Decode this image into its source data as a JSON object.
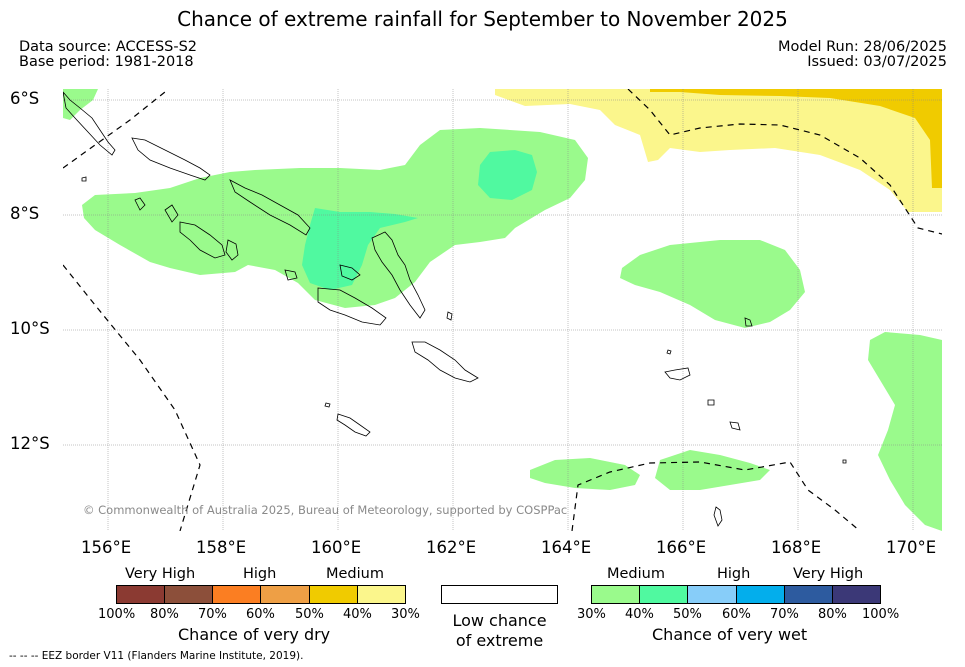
{
  "title": "Chance of extreme rainfall for September to November 2025",
  "meta": {
    "data_source": "Data source: ACCESS-S2",
    "base_period": "Base period: 1981-2018",
    "model_run": "Model Run: 28/06/2025",
    "issued": "Issued: 03/07/2025"
  },
  "map": {
    "lat_labels": [
      "6°S",
      "8°S",
      "10°S",
      "12°S"
    ],
    "lon_labels": [
      "156°E",
      "158°E",
      "160°E",
      "162°E",
      "164°E",
      "166°E",
      "168°E",
      "170°E"
    ],
    "copyright": "© Commonwealth of Australia 2025, Bureau of Meteorology, supported by COSPPac",
    "colors": {
      "medium_wet": "#9afa8c",
      "high_wet_40": "#50f9a0",
      "medium_dry": "#fbf68c",
      "high_dry": "#f0cb00",
      "land_outline": "#000000"
    }
  },
  "legend_dry": {
    "headings": [
      "Very High",
      "High",
      "Medium"
    ],
    "ticks": [
      "100%",
      "80%",
      "70%",
      "60%",
      "50%",
      "40%",
      "30%"
    ],
    "colors": [
      "#8b3a32",
      "#8c4f3a",
      "#fb7e22",
      "#ee9f45",
      "#f0cb00",
      "#fbf68c"
    ],
    "title": "Chance of very dry"
  },
  "legend_neutral": {
    "line1": "Low chance",
    "line2": "of extreme"
  },
  "legend_wet": {
    "headings": [
      "Medium",
      "High",
      "Very High"
    ],
    "ticks": [
      "30%",
      "40%",
      "50%",
      "60%",
      "70%",
      "80%",
      "100%"
    ],
    "colors": [
      "#9afa8c",
      "#50f9a0",
      "#87cdf9",
      "#03aeec",
      "#2d5b9f",
      "#3b3877"
    ],
    "title": "Chance of very wet"
  },
  "footer": "--  --  -- EEZ border V11 (Flanders Marine Institute, 2019)."
}
